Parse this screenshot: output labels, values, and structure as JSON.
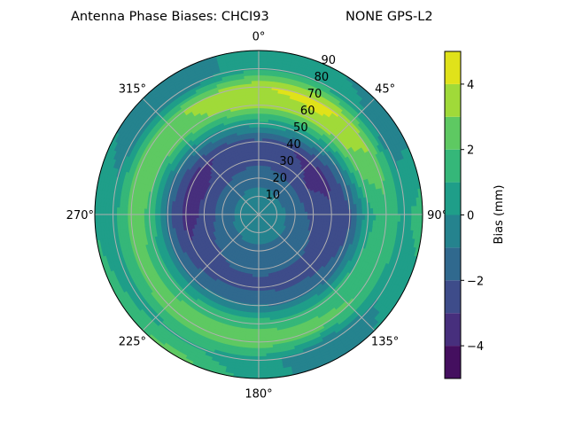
{
  "chart_data": {
    "type": "heatmap",
    "subtype": "polar-filled-contour",
    "title_left": "Antenna Phase Biases: CHCI93",
    "title_right": "NONE GPS-L2",
    "theta_direction": "clockwise",
    "theta_zero": "north",
    "theta_tick_labels": [
      "0°",
      "45°",
      "90°",
      "135°",
      "180°",
      "225°",
      "270°",
      "315°"
    ],
    "r_tick_labels": [
      "10",
      "20",
      "30",
      "40",
      "50",
      "60",
      "70",
      "80",
      "90"
    ],
    "rlim": [
      0,
      90
    ],
    "grid": true,
    "zenith": [
      0,
      10,
      20,
      30,
      40,
      50,
      60,
      70,
      80,
      90
    ],
    "azimuth": [
      0,
      30,
      60,
      90,
      120,
      150,
      180,
      210,
      240,
      270,
      300,
      330
    ],
    "bias": [
      [
        -0.5,
        -0.5,
        -0.5,
        -0.5,
        -0.5,
        -0.5,
        -0.5,
        -0.5,
        -0.5,
        -0.5,
        -0.5,
        -0.5
      ],
      [
        -0.7,
        -0.7,
        -0.7,
        -0.7,
        -0.7,
        -0.7,
        -0.7,
        -0.7,
        -0.7,
        -0.7,
        -0.7,
        -0.7
      ],
      [
        -1.3,
        -1.4,
        -1.5,
        -1.3,
        -1.2,
        -1.2,
        -1.2,
        -1.2,
        -1.3,
        -1.5,
        -1.5,
        -1.4
      ],
      [
        -2.2,
        -2.6,
        -3.0,
        -2.3,
        -1.9,
        -1.8,
        -1.8,
        -1.9,
        -2.2,
        -2.8,
        -2.9,
        -2.6
      ],
      [
        -2.3,
        -3.0,
        -3.5,
        -2.7,
        -2.5,
        -2.4,
        -2.3,
        -2.3,
        -2.8,
        -3.5,
        -3.5,
        -2.8
      ],
      [
        0.5,
        0.3,
        -1.2,
        -2.2,
        -1.8,
        -1.3,
        -1.0,
        -1.0,
        -1.3,
        -1.6,
        -1.0,
        -0.2
      ],
      [
        3.5,
        3.6,
        2.8,
        0.6,
        1.2,
        1.6,
        1.6,
        1.6,
        1.6,
        1.8,
        2.2,
        2.9
      ],
      [
        3.9,
        4.5,
        3.0,
        1.6,
        1.8,
        2.4,
        2.8,
        2.8,
        2.5,
        2.5,
        2.4,
        3.2
      ],
      [
        1.0,
        0.5,
        -0.5,
        0.8,
        0.3,
        -1.0,
        0.5,
        0.9,
        0.5,
        0.5,
        -0.5,
        -0.8
      ],
      [
        0.5,
        0.0,
        -0.3,
        1.5,
        0.5,
        -0.5,
        0.3,
        2.5,
        1.5,
        0.8,
        0.0,
        -0.5
      ]
    ],
    "levels": [
      -5,
      -4,
      -3,
      -2,
      -1,
      0,
      1,
      2,
      3,
      4,
      5
    ],
    "colormap": "viridis",
    "level_colors": [
      "#440f5f",
      "#472f7d",
      "#3e4c8a",
      "#30698e",
      "#25838e",
      "#1f9e89",
      "#35b779",
      "#5ec962",
      "#a0da39",
      "#e0e21a"
    ],
    "grid_color": "#b0b0b0",
    "colorbar": {
      "label": "Bias (mm)",
      "tick_values": [
        4,
        2,
        0,
        -2,
        -4
      ],
      "tick_labels": [
        "4",
        "2",
        "0",
        "−2",
        "−4"
      ],
      "range": [
        -5,
        5
      ]
    }
  }
}
